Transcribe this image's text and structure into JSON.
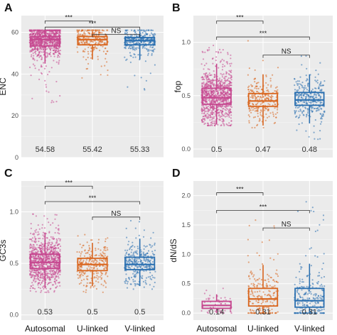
{
  "categories": [
    "Autosomal",
    "U-linked",
    "V-linked"
  ],
  "colors": {
    "Autosomal": "#c6478f",
    "U-linked": "#d9661f",
    "V-linked": "#2a6fb0"
  },
  "chart_data": [
    {
      "type": "box",
      "panel": "A",
      "ylabel": "ENC",
      "ylim": [
        0,
        68
      ],
      "yticks": [
        0,
        20,
        40,
        60
      ],
      "ytick_labels": [
        "0",
        "20",
        "40",
        "60"
      ],
      "categories": [
        "Autosomal",
        "U-linked",
        "V-linked"
      ],
      "box": [
        {
          "q1": 53.5,
          "median": 56.5,
          "q3": 58.0,
          "low": 45.0,
          "high": 60.5,
          "min": 26.0,
          "max": 61.0,
          "n": 900
        },
        {
          "q1": 54.0,
          "median": 56.5,
          "q3": 58.0,
          "low": 47.0,
          "high": 60.5,
          "min": 35.0,
          "max": 61.0,
          "n": 260
        },
        {
          "q1": 54.0,
          "median": 56.0,
          "q3": 57.5,
          "low": 47.0,
          "high": 60.5,
          "min": 29.0,
          "max": 61.0,
          "n": 300
        }
      ],
      "means": [
        "54.58",
        "55.42",
        "55.33"
      ],
      "significance": [
        {
          "pair": [
            0,
            1
          ],
          "label": "***",
          "y": 65.5
        },
        {
          "pair": [
            0,
            2
          ],
          "label": "***",
          "y": 62.5
        },
        {
          "pair": [
            1,
            2
          ],
          "label": "NS",
          "y": 59.0
        }
      ]
    },
    {
      "type": "box",
      "panel": "B",
      "ylabel": "fop",
      "ylim": [
        -0.08,
        1.25
      ],
      "yticks": [
        0.0,
        0.5,
        1.0
      ],
      "ytick_labels": [
        "0.0",
        "0.5",
        "1.0"
      ],
      "categories": [
        "Autosomal",
        "U-linked",
        "V-linked"
      ],
      "box": [
        {
          "q1": 0.42,
          "median": 0.48,
          "q3": 0.57,
          "low": 0.23,
          "high": 0.8,
          "min": 0.22,
          "max": 0.98,
          "n": 900
        },
        {
          "q1": 0.4,
          "median": 0.45,
          "q3": 0.52,
          "low": 0.22,
          "high": 0.7,
          "min": 0.2,
          "max": 1.02,
          "n": 260
        },
        {
          "q1": 0.41,
          "median": 0.46,
          "q3": 0.53,
          "low": 0.24,
          "high": 0.7,
          "min": 0.05,
          "max": 0.92,
          "n": 300
        }
      ],
      "means": [
        "0.5",
        "0.47",
        "0.48"
      ],
      "significance": [
        {
          "pair": [
            0,
            1
          ],
          "label": "***",
          "y": 1.2
        },
        {
          "pair": [
            0,
            2
          ],
          "label": "***",
          "y": 1.05
        },
        {
          "pair": [
            1,
            2
          ],
          "label": "NS",
          "y": 0.88
        }
      ]
    },
    {
      "type": "box",
      "panel": "C",
      "ylabel": "GC3s",
      "ylim": [
        -0.05,
        1.3
      ],
      "yticks": [
        0.0,
        0.5,
        1.0
      ],
      "ytick_labels": [
        "0.0",
        "0.5",
        "1.0"
      ],
      "categories": [
        "Autosomal",
        "U-linked",
        "V-linked"
      ],
      "box": [
        {
          "q1": 0.45,
          "median": 0.51,
          "q3": 0.59,
          "low": 0.26,
          "high": 0.8,
          "min": 0.22,
          "max": 0.98,
          "n": 900
        },
        {
          "q1": 0.43,
          "median": 0.49,
          "q3": 0.55,
          "low": 0.28,
          "high": 0.7,
          "min": 0.22,
          "max": 0.82,
          "n": 260
        },
        {
          "q1": 0.44,
          "median": 0.49,
          "q3": 0.56,
          "low": 0.28,
          "high": 0.74,
          "min": 0.25,
          "max": 0.97,
          "n": 300
        }
      ],
      "means": [
        "0.53",
        "0.5",
        "0.5"
      ],
      "significance": [
        {
          "pair": [
            0,
            1
          ],
          "label": "***",
          "y": 1.25
        },
        {
          "pair": [
            0,
            2
          ],
          "label": "***",
          "y": 1.1
        },
        {
          "pair": [
            1,
            2
          ],
          "label": "NS",
          "y": 0.95
        }
      ]
    },
    {
      "type": "box",
      "panel": "D",
      "ylabel": "dN/dS",
      "ylim": [
        -0.12,
        2.25
      ],
      "yticks": [
        0.0,
        0.5,
        1.0,
        1.5,
        2.0
      ],
      "ytick_labels": [
        "0.0",
        "0.5",
        "1.0",
        "1.5",
        "2.0"
      ],
      "categories": [
        "Autosomal",
        "U-linked",
        "V-linked"
      ],
      "box": [
        {
          "q1": 0.08,
          "median": 0.13,
          "q3": 0.2,
          "low": 0.0,
          "high": 0.32,
          "min": 0.0,
          "max": 0.45,
          "n": 60
        },
        {
          "q1": 0.12,
          "median": 0.24,
          "q3": 0.42,
          "low": 0.0,
          "high": 0.82,
          "min": 0.0,
          "max": 1.65,
          "n": 220
        },
        {
          "q1": 0.1,
          "median": 0.21,
          "q3": 0.42,
          "low": 0.0,
          "high": 0.84,
          "min": 0.0,
          "max": 1.92,
          "n": 240
        }
      ],
      "means": [
        "0.14",
        "0.31",
        "0.31"
      ],
      "significance": [
        {
          "pair": [
            0,
            1
          ],
          "label": "***",
          "y": 2.05
        },
        {
          "pair": [
            0,
            2
          ],
          "label": "***",
          "y": 1.75
        },
        {
          "pair": [
            1,
            2
          ],
          "label": "NS",
          "y": 1.45
        }
      ]
    }
  ]
}
